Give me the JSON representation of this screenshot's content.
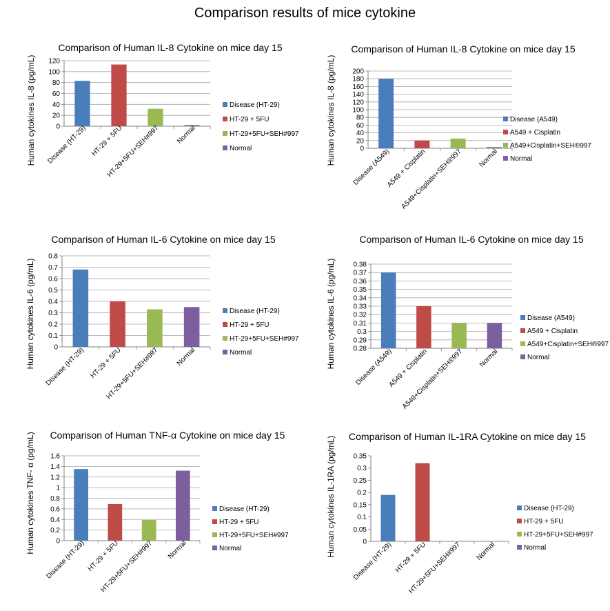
{
  "main_title": "Comparison results of mice cytokine",
  "colors": {
    "blue": "#4a7ebb",
    "red": "#be4b48",
    "green": "#98b954",
    "purple": "#7d5fa0",
    "gridline": "#a6a6a6"
  },
  "chart_data": [
    {
      "type": "bar",
      "title": "Comparison of Human IL-8 Cytokine on mice day 15",
      "ylabel": "Human cytokines IL-8 (pg/mL)",
      "categories": [
        "Disease (HT-29)",
        "HT-29 + 5FU",
        "HT-29+5FU+SEH#997",
        "Normal"
      ],
      "values": [
        83,
        113,
        32,
        2
      ],
      "legend": [
        "Disease (HT-29)",
        "HT-29 + 5FU",
        "HT-29+5FU+SEH#997",
        "Normal"
      ],
      "ylim": [
        0,
        120
      ],
      "yticks": [
        "0",
        "20",
        "40",
        "60",
        "80",
        "100",
        "120"
      ],
      "grid": true,
      "legend_position": "right"
    },
    {
      "type": "bar",
      "title": "Comparison of Human IL-8 Cytokine on mice day 15",
      "ylabel": "Human cytokines IL-8 (pg/mL)",
      "categories": [
        "Disease (A549)",
        "A549 + Cisplatin",
        "A549+Cisplatin+SEH®997",
        "Normal"
      ],
      "values": [
        180,
        20,
        25,
        3
      ],
      "legend": [
        "Disease (A549)",
        "A549 + Cisplatin",
        "A549+Cisplatin+SEH®997",
        "Normal"
      ],
      "ylim": [
        0,
        200
      ],
      "yticks": [
        "0",
        "20",
        "40",
        "60",
        "80",
        "100",
        "120",
        "140",
        "160",
        "180",
        "200"
      ],
      "grid": true,
      "legend_position": "right"
    },
    {
      "type": "bar",
      "title": "Comparison of Human IL-6 Cytokine on mice day 15",
      "ylabel": "Human cytokines IL-6 (pg/mL)",
      "categories": [
        "Disease (HT-29)",
        "HT-29 + 5FU",
        "HT-29+5FU+SEH#997",
        "Normal"
      ],
      "values": [
        0.68,
        0.4,
        0.33,
        0.35
      ],
      "legend": [
        "Disease (HT-29)",
        "HT-29 + 5FU",
        "HT-29+5FU+SEH#997",
        "Normal"
      ],
      "ylim": [
        0,
        0.8
      ],
      "yticks": [
        "0",
        "0.1",
        "0.2",
        "0.3",
        "0.4",
        "0.5",
        "0.6",
        "0.7",
        "0.8"
      ],
      "grid": true,
      "legend_position": "right"
    },
    {
      "type": "bar",
      "title": "Comparison of Human IL-6 Cytokine on mice day 15",
      "ylabel": "Human cytokines IL-6 (pg/mL)",
      "categories": [
        "Disease (A549)",
        "A549 + Cisplatin",
        "A549+Cisplatin+SEH®997",
        "Normal"
      ],
      "values": [
        0.37,
        0.33,
        0.31,
        0.31
      ],
      "legend": [
        "Disease (A549)",
        "A549 + Cisplatin",
        "A549+Cisplatin+SEH®997",
        "Normal"
      ],
      "ylim": [
        0.28,
        0.38
      ],
      "yticks": [
        "0.28",
        "0.29",
        "0.3",
        "0.31",
        "0.32",
        "0.33",
        "0.34",
        "0.35",
        "0.36",
        "0.37",
        "0.38"
      ],
      "grid": true,
      "legend_position": "right"
    },
    {
      "type": "bar",
      "title": "Comparison of Human TNF-α Cytokine on mice day 15",
      "ylabel": "Human cytokines TNF- α (pg/mL)",
      "categories": [
        "Disease (HT-29)",
        "HT-29 + 5FU",
        "HT-29+5FU+SEH#997",
        "Normal"
      ],
      "values": [
        1.35,
        0.69,
        0.39,
        1.32
      ],
      "legend": [
        "Disease (HT-29)",
        "HT-29 + 5FU",
        "HT-29+5FU+SEH#997",
        "Normal"
      ],
      "ylim": [
        0,
        1.6
      ],
      "yticks": [
        "0",
        "0.2",
        "0.4",
        "0.6",
        "0.8",
        "1",
        "1.2",
        "1.4",
        "1.6"
      ],
      "grid": true,
      "legend_position": "right"
    },
    {
      "type": "bar",
      "title": "Comparison of Human IL-1RA Cytokine on mice day 15",
      "ylabel": "Human cytokines IL-1RA (pg/mL)",
      "categories": [
        "Disease (HT-29)",
        "HT-29 + 5FU",
        "HT-29+5FU+SEH#997",
        "Normal"
      ],
      "values": [
        0.19,
        0.32,
        0,
        0
      ],
      "legend": [
        "Disease (HT-29)",
        "HT-29 + 5FU",
        "HT-29+5FU+SEH#997",
        "Normal"
      ],
      "ylim": [
        0,
        0.35
      ],
      "yticks": [
        "0",
        "0.05",
        "0.1",
        "0.15",
        "0.2",
        "0.25",
        "0.3",
        "0.35"
      ],
      "grid": false,
      "legend_position": "right"
    }
  ]
}
